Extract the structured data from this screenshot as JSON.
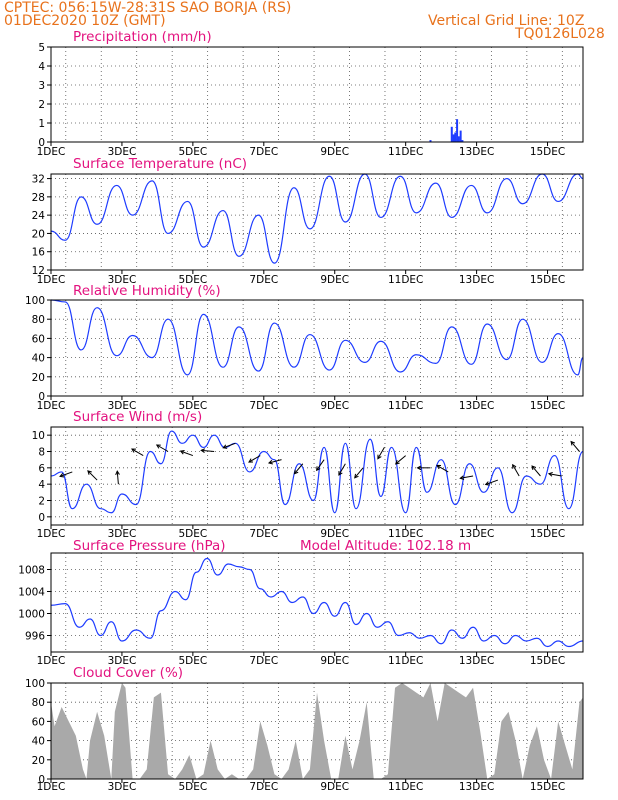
{
  "header": {
    "station": "CPTEC:   056:15W-28:31S   SAO BORJA (RS)",
    "date": "01DEC2020 10Z (GMT)",
    "grid_note": "Vertical Grid Line: 10Z",
    "code": "TQ0126L028"
  },
  "colors": {
    "header": "#e8721c",
    "title": "#e3127f",
    "line": "#1e3cff",
    "cloud": "#a9a9a9"
  },
  "chart_data": [
    {
      "id": "precip",
      "type": "bar",
      "title": "Precipitation (mm/h)",
      "ylim": [
        0,
        5
      ],
      "yticks": [
        0,
        1,
        2,
        3,
        4,
        5
      ],
      "xticks": [
        "1DEC",
        "3DEC",
        "5DEC",
        "7DEC",
        "9DEC",
        "11DEC",
        "13DEC",
        "15DEC"
      ],
      "grid": true,
      "x_day": [
        11.7,
        12.3,
        12.35,
        12.4,
        12.45,
        12.5,
        12.55,
        12.6
      ],
      "values": [
        0.1,
        0.8,
        0.4,
        0.5,
        1.2,
        0.3,
        0.6,
        0.1
      ]
    },
    {
      "id": "temp",
      "type": "line",
      "title": "Surface Temperature (nC)",
      "ylim": [
        12,
        33
      ],
      "yticks": [
        12,
        16,
        20,
        24,
        28,
        32
      ],
      "xticks": [
        "1DEC",
        "3DEC",
        "5DEC",
        "7DEC",
        "9DEC",
        "11DEC",
        "13DEC",
        "15DEC"
      ],
      "grid": true,
      "x_day": [
        1.0,
        1.4,
        1.85,
        2.3,
        2.85,
        3.3,
        3.85,
        4.3,
        4.85,
        5.3,
        5.85,
        6.3,
        6.85,
        7.3,
        7.85,
        8.3,
        8.85,
        9.3,
        9.85,
        10.3,
        10.85,
        11.3,
        11.85,
        12.3,
        12.85,
        13.3,
        13.85,
        14.3,
        14.85,
        15.3,
        15.85,
        16.0
      ],
      "values": [
        20.5,
        18.5,
        28.0,
        22.0,
        30.5,
        24.0,
        31.5,
        20.0,
        27.0,
        17.0,
        25.0,
        15.0,
        24.0,
        13.5,
        30.0,
        21.0,
        32.5,
        22.5,
        33.0,
        23.5,
        32.5,
        24.5,
        31.0,
        23.5,
        30.5,
        24.5,
        32.0,
        26.5,
        33.0,
        27.0,
        33.0,
        32.0
      ]
    },
    {
      "id": "rh",
      "type": "line",
      "title": "Relative Humidity (%)",
      "ylim": [
        0,
        100
      ],
      "yticks": [
        0,
        20,
        40,
        60,
        80,
        100
      ],
      "xticks": [
        "1DEC",
        "3DEC",
        "5DEC",
        "7DEC",
        "9DEC",
        "11DEC",
        "13DEC",
        "15DEC"
      ],
      "grid": true,
      "x_day": [
        1.0,
        1.4,
        1.85,
        2.3,
        2.85,
        3.3,
        3.85,
        4.3,
        4.85,
        5.3,
        5.85,
        6.3,
        6.85,
        7.3,
        7.85,
        8.3,
        8.85,
        9.3,
        9.85,
        10.3,
        10.85,
        11.3,
        11.85,
        12.3,
        12.85,
        13.3,
        13.85,
        14.3,
        14.85,
        15.3,
        15.85,
        16.0
      ],
      "values": [
        100,
        98,
        48,
        92,
        42,
        63,
        40,
        80,
        22,
        85,
        30,
        72,
        26,
        76,
        30,
        64,
        27,
        58,
        35,
        57,
        25,
        43,
        34,
        72,
        33,
        75,
        38,
        80,
        35,
        65,
        22,
        40
      ]
    },
    {
      "id": "wind",
      "type": "line",
      "title": "Surface Wind (m/s)",
      "ylim": [
        -1,
        11
      ],
      "yticks": [
        0,
        2,
        4,
        6,
        8,
        10
      ],
      "xticks": [
        "1DEC",
        "3DEC",
        "5DEC",
        "7DEC",
        "9DEC",
        "11DEC",
        "13DEC",
        "15DEC"
      ],
      "grid": true,
      "x_day": [
        1.0,
        1.3,
        1.6,
        2.0,
        2.4,
        2.7,
        3.0,
        3.4,
        3.8,
        4.1,
        4.4,
        4.7,
        5.0,
        5.3,
        5.6,
        5.9,
        6.2,
        6.6,
        7.0,
        7.3,
        7.6,
        8.0,
        8.4,
        8.7,
        9.0,
        9.3,
        9.6,
        10.0,
        10.3,
        10.6,
        11.0,
        11.3,
        11.6,
        12.0,
        12.4,
        12.8,
        13.2,
        13.6,
        14.0,
        14.4,
        14.8,
        15.2,
        15.6,
        16.0
      ],
      "values": [
        5.0,
        5.5,
        1.0,
        4.0,
        1.0,
        0.5,
        2.8,
        1.5,
        8.0,
        6.5,
        10.5,
        9.0,
        10.0,
        8.5,
        10.0,
        8.5,
        9.0,
        5.5,
        8.0,
        7.0,
        1.5,
        6.5,
        2.0,
        8.5,
        0.5,
        9.0,
        1.0,
        9.5,
        2.5,
        8.5,
        0.5,
        8.5,
        3.0,
        7.0,
        1.5,
        6.5,
        3.0,
        6.0,
        0.5,
        5.0,
        4.0,
        7.5,
        1.0,
        8.0
      ],
      "arrows": [
        {
          "day": 1.6,
          "dir_deg": 200,
          "speed": 5.5
        },
        {
          "day": 2.3,
          "dir_deg": 135,
          "speed": 4.5
        },
        {
          "day": 2.9,
          "dir_deg": 95,
          "speed": 4.0
        },
        {
          "day": 3.6,
          "dir_deg": 150,
          "speed": 7.5
        },
        {
          "day": 4.3,
          "dir_deg": 150,
          "speed": 8.0
        },
        {
          "day": 5.0,
          "dir_deg": 160,
          "speed": 7.5
        },
        {
          "day": 5.6,
          "dir_deg": 175,
          "speed": 8.0
        },
        {
          "day": 6.2,
          "dir_deg": 200,
          "speed": 9.0
        },
        {
          "day": 6.9,
          "dir_deg": 210,
          "speed": 7.5
        },
        {
          "day": 7.5,
          "dir_deg": 195,
          "speed": 7.0
        },
        {
          "day": 8.1,
          "dir_deg": 230,
          "speed": 6.5
        },
        {
          "day": 8.7,
          "dir_deg": 235,
          "speed": 7.0
        },
        {
          "day": 9.3,
          "dir_deg": 240,
          "speed": 6.5
        },
        {
          "day": 9.8,
          "dir_deg": 230,
          "speed": 6.0
        },
        {
          "day": 10.4,
          "dir_deg": 240,
          "speed": 8.5
        },
        {
          "day": 11.0,
          "dir_deg": 220,
          "speed": 7.5
        },
        {
          "day": 11.7,
          "dir_deg": 180,
          "speed": 6.0
        },
        {
          "day": 12.2,
          "dir_deg": 150,
          "speed": 5.5
        },
        {
          "day": 12.9,
          "dir_deg": 190,
          "speed": 5.0
        },
        {
          "day": 13.6,
          "dir_deg": 200,
          "speed": 4.5
        },
        {
          "day": 14.2,
          "dir_deg": 120,
          "speed": 5.0
        },
        {
          "day": 14.8,
          "dir_deg": 130,
          "speed": 5.0
        },
        {
          "day": 15.4,
          "dir_deg": 170,
          "speed": 5.0
        },
        {
          "day": 15.9,
          "dir_deg": 130,
          "speed": 8.0
        }
      ]
    },
    {
      "id": "pres",
      "type": "line",
      "title": "Surface Pressure (hPa)",
      "note": "Model Altitude: 102.18 m",
      "ylim": [
        993,
        1011
      ],
      "yticks": [
        996,
        1000,
        1004,
        1008
      ],
      "xticks": [
        "1DEC",
        "3DEC",
        "5DEC",
        "7DEC",
        "9DEC",
        "11DEC",
        "13DEC",
        "15DEC"
      ],
      "grid": true,
      "x_day": [
        1.0,
        1.4,
        1.8,
        2.1,
        2.4,
        2.7,
        3.0,
        3.4,
        3.8,
        4.1,
        4.5,
        4.8,
        5.1,
        5.4,
        5.7,
        6.0,
        6.3,
        6.6,
        6.9,
        7.2,
        7.5,
        7.8,
        8.1,
        8.4,
        8.7,
        9.0,
        9.3,
        9.6,
        9.9,
        10.2,
        10.5,
        10.8,
        11.1,
        11.4,
        11.7,
        12.0,
        12.3,
        12.6,
        12.9,
        13.2,
        13.5,
        13.8,
        14.1,
        14.4,
        14.7,
        15.0,
        15.3,
        15.6,
        16.0
      ],
      "values": [
        1001.5,
        1001.8,
        997.5,
        999.0,
        996.0,
        998.5,
        995.0,
        997.0,
        995.5,
        1000.5,
        1004.0,
        1002.5,
        1007.5,
        1010.0,
        1007.0,
        1009.0,
        1008.5,
        1008.0,
        1004.5,
        1003.0,
        1004.0,
        1002.0,
        1003.0,
        1000.0,
        1002.0,
        999.5,
        1002.0,
        998.0,
        1000.0,
        997.5,
        998.5,
        996.0,
        996.5,
        995.5,
        996.0,
        994.5,
        997.0,
        995.5,
        997.5,
        995.0,
        996.0,
        994.5,
        996.0,
        995.0,
        995.5,
        994.0,
        995.0,
        994.0,
        995.0
      ]
    },
    {
      "id": "cloud",
      "type": "area",
      "title": "Cloud Cover (%)",
      "ylim": [
        0,
        100
      ],
      "yticks": [
        0,
        20,
        40,
        60,
        80,
        100
      ],
      "xticks": [
        "1DEC",
        "3DEC",
        "5DEC",
        "7DEC",
        "9DEC",
        "11DEC",
        "13DEC",
        "15DEC"
      ],
      "grid": true,
      "x_day": [
        1.0,
        1.1,
        1.3,
        1.5,
        1.7,
        1.9,
        2.0,
        2.1,
        2.3,
        2.5,
        2.7,
        2.8,
        3.0,
        3.1,
        3.3,
        3.5,
        3.7,
        3.9,
        4.1,
        4.3,
        4.5,
        4.7,
        4.9,
        5.1,
        5.3,
        5.5,
        5.7,
        5.9,
        6.1,
        6.3,
        6.5,
        6.7,
        6.9,
        7.1,
        7.3,
        7.5,
        7.7,
        7.9,
        8.1,
        8.3,
        8.5,
        8.7,
        8.9,
        9.1,
        9.3,
        9.5,
        9.7,
        9.9,
        10.1,
        10.3,
        10.5,
        10.7,
        10.9,
        11.1,
        11.3,
        11.5,
        11.7,
        11.9,
        12.1,
        12.3,
        12.5,
        12.7,
        12.9,
        13.1,
        13.3,
        13.5,
        13.7,
        13.9,
        14.1,
        14.3,
        14.5,
        14.7,
        14.9,
        15.1,
        15.3,
        15.5,
        15.7,
        15.9,
        16.0
      ],
      "values": [
        80,
        55,
        75,
        60,
        45,
        10,
        0,
        40,
        70,
        45,
        0,
        70,
        100,
        95,
        0,
        0,
        10,
        85,
        90,
        5,
        0,
        10,
        25,
        0,
        5,
        40,
        10,
        0,
        5,
        0,
        0,
        10,
        60,
        35,
        5,
        0,
        10,
        40,
        0,
        10,
        90,
        40,
        0,
        0,
        45,
        10,
        40,
        80,
        0,
        0,
        5,
        95,
        100,
        95,
        90,
        85,
        100,
        60,
        100,
        95,
        90,
        85,
        95,
        50,
        0,
        5,
        60,
        70,
        40,
        0,
        35,
        55,
        20,
        0,
        60,
        35,
        10,
        80,
        85
      ]
    }
  ]
}
